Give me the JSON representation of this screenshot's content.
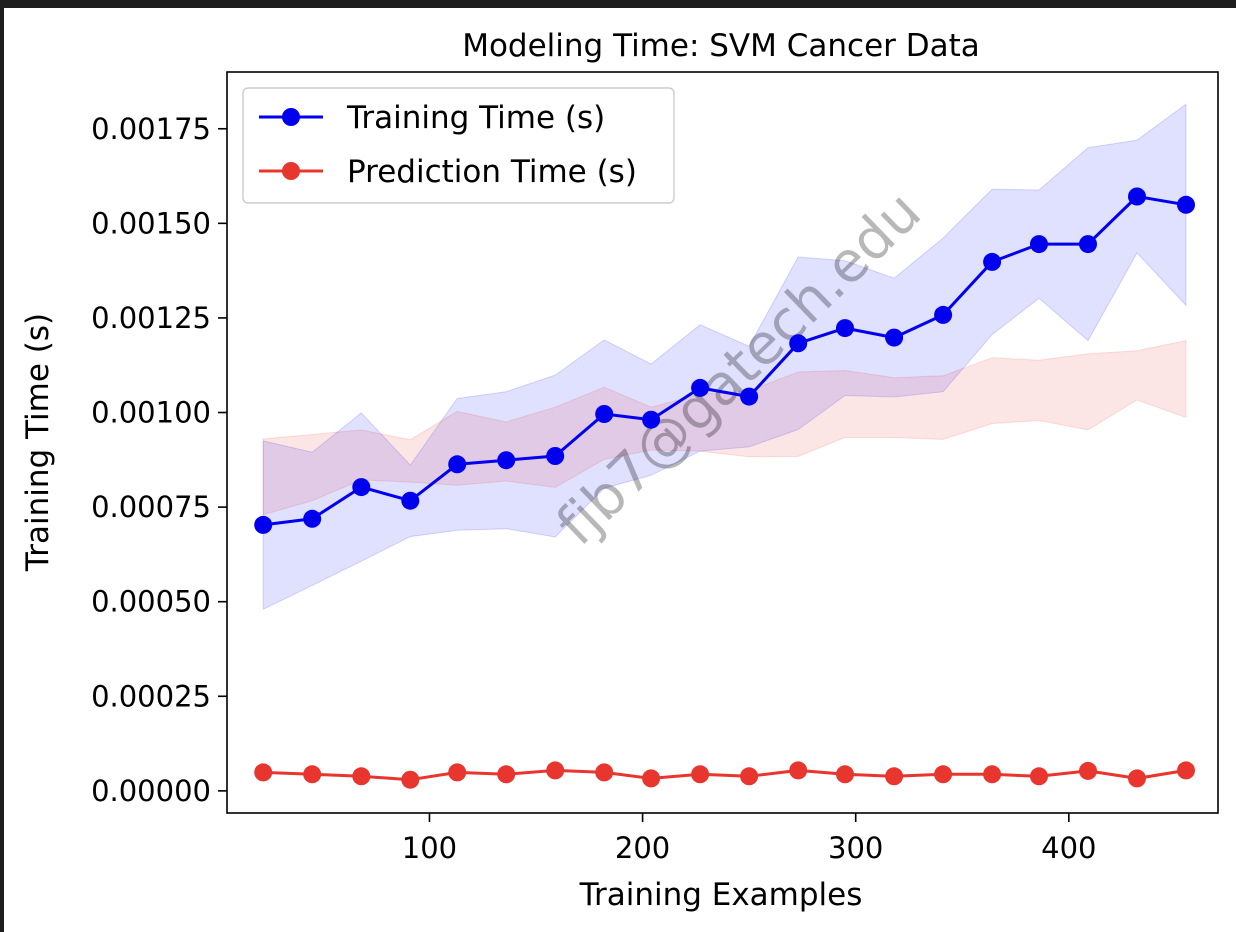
{
  "chart_data": {
    "type": "line",
    "title": "Modeling Time: SVM Cancer Data",
    "xlabel": "Training Examples",
    "ylabel": "Training Time (s)",
    "xlim": [
      5,
      470
    ],
    "ylim": [
      -5.85e-05,
      0.0019
    ],
    "x_ticks": [
      100,
      200,
      300,
      400
    ],
    "x_tick_labels": [
      "100",
      "200",
      "300",
      "400"
    ],
    "y_ticks": [
      0,
      0.00025,
      0.0005,
      0.00075,
      0.001,
      0.00125,
      0.0015,
      0.00175
    ],
    "y_tick_labels": [
      "0.00000",
      "0.00025",
      "0.00050",
      "0.00075",
      "0.00100",
      "0.00125",
      "0.00150",
      "0.00175"
    ],
    "grid": false,
    "legend_position": "top-left",
    "watermark": "fjb7@gatech.edu",
    "x": [
      22,
      45,
      68,
      91,
      113,
      136,
      159,
      182,
      204,
      227,
      250,
      273,
      295,
      318,
      341,
      364,
      386,
      409,
      432,
      455
    ],
    "series": [
      {
        "name": "Training Time (s)",
        "color": "#0000ee",
        "band_color": "#0000ff",
        "values": [
          0.000703,
          0.000719,
          0.000803,
          0.000767,
          0.000863,
          0.000874,
          0.000885,
          0.000996,
          0.000981,
          0.001065,
          0.001042,
          0.001183,
          0.001223,
          0.001198,
          0.001258,
          0.001398,
          0.001445,
          0.001445,
          0.001571,
          0.001549
        ],
        "band_upper": [
          0.000925,
          0.000895,
          0.000999,
          0.000861,
          0.001037,
          0.001055,
          0.001099,
          0.001192,
          0.001128,
          0.001232,
          0.001175,
          0.001411,
          0.001401,
          0.001355,
          0.001461,
          0.00159,
          0.001588,
          0.0017,
          0.00172,
          0.001815
        ],
        "band_lower": [
          0.00048,
          0.000543,
          0.000607,
          0.000672,
          0.000689,
          0.000693,
          0.000671,
          0.0008,
          0.000834,
          0.000898,
          0.000909,
          0.000955,
          0.001045,
          0.001041,
          0.001055,
          0.001206,
          0.001302,
          0.00119,
          0.001422,
          0.001283
        ]
      },
      {
        "name": "Prediction Time (s)",
        "color": "#e8352d",
        "band_color": "#e8352d",
        "values": [
          4.89e-05,
          4.38e-05,
          3.84e-05,
          2.94e-05,
          4.89e-05,
          4.38e-05,
          5.42e-05,
          4.89e-05,
          3.29e-05,
          4.38e-05,
          3.84e-05,
          5.42e-05,
          4.38e-05,
          3.84e-05,
          4.38e-05,
          4.38e-05,
          3.84e-05,
          5.27e-05,
          3.29e-05,
          5.42e-05
        ],
        "band_upper": [
          0.00093,
          0.000942,
          0.000954,
          0.000928,
          0.001003,
          0.000975,
          0.001014,
          0.001067,
          0.001014,
          0.001049,
          0.001057,
          0.001107,
          0.001111,
          0.001092,
          0.001097,
          0.001145,
          0.001138,
          0.001155,
          0.001163,
          0.00119
        ],
        "band_lower": [
          0.00073,
          0.000767,
          0.000822,
          0.000816,
          0.000808,
          0.000819,
          0.000802,
          0.000876,
          0.000901,
          0.000898,
          0.000883,
          0.000884,
          0.000934,
          0.000934,
          0.000929,
          0.000971,
          0.000979,
          0.000954,
          0.001033,
          0.000987
        ]
      }
    ]
  }
}
